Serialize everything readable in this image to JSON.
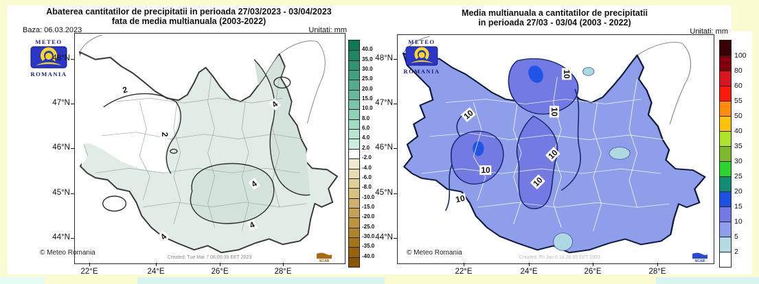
{
  "page": {
    "background_yellow": "#FBFBD2",
    "background_cyan": "#D9F4F2",
    "panel_white": "#FFFFFF"
  },
  "left_map": {
    "title_line1": "Abaterea cantitatilor de precipitatii in perioada 27/03/2023 - 03/04/2023",
    "title_line2": "fata de media multianuala (2003-2022)",
    "base_label": "Baza: 06.03.2023",
    "units_label": "Unitati: mm",
    "logo": {
      "line1": "METEO",
      "line2": "ROMANIA"
    },
    "copyright": "© Meteo Romania",
    "created": "Created: Tue Mar 7 06:00:39 EET 2023",
    "ncar_label": "NCAR",
    "ncar_color": "#A86A14",
    "lat_ticks": [
      "48°N",
      "47°N",
      "46°N",
      "45°N",
      "44°N"
    ],
    "lon_ticks": [
      "22°E",
      "24°E",
      "26°E",
      "28°E"
    ],
    "contour_labels": [
      "2",
      "2",
      "4",
      "4",
      "4",
      "4"
    ],
    "fill_light": "#E2ECE7",
    "fill_mid": "#D3E3DC",
    "fill_white": "#FFFFFF",
    "contour_color": "#2e2e2e",
    "colorbar": {
      "labels": [
        "40.0",
        "35.0",
        "30.0",
        "25.0",
        "20.0",
        "15.0",
        "10.0",
        "8.0",
        "6.0",
        "4.0",
        "2.0",
        "-2.0",
        "-4.0",
        "-6.0",
        "-8.0",
        "-10.0",
        "-15.0",
        "-20.0",
        "-25.0",
        "-30.0",
        "-35.0",
        "-40.0"
      ],
      "colors": [
        "#0B7A57",
        "#1C8764",
        "#2E9371",
        "#40A07F",
        "#53AC8D",
        "#66B99B",
        "#7AC5A9",
        "#8ED1B7",
        "#A3DCC5",
        "#B8E5D2",
        "#CCEEDF",
        "#FFFFFF",
        "#F0E9D0",
        "#E8DCB5",
        "#E0CF9B",
        "#D8C181",
        "#CFB269",
        "#C5A352",
        "#BB943C",
        "#B08527",
        "#A47514",
        "#976507",
        "#8A5500"
      ]
    }
  },
  "right_map": {
    "title_line1": "Media multianuala a cantitatilor de precipitatii",
    "title_line2": "in perioada 27/03 - 03/04 (2003 - 2022)",
    "units_label": "Unitati: mm",
    "logo": {
      "line1": "METEO",
      "line2": "ROMANIA"
    },
    "copyright": "© Meteo Romania",
    "created": "Created: Fri Jan 6 16:20:15 EET 2023",
    "ncar_label": "NCAR",
    "ncar_color": "#2B49D8",
    "lat_ticks": [
      "48°N",
      "47°N",
      "46°N",
      "45°N",
      "44°N"
    ],
    "lon_ticks": [
      "22°E",
      "24°E",
      "26°E",
      "28°E"
    ],
    "contour_labels": [
      "10",
      "10",
      "10",
      "10",
      "10",
      "10",
      "10"
    ],
    "fill_base": "#8F9EEA",
    "fill_dark": "#747AE4",
    "fill_blue_spot": "#1E55E6",
    "fill_cyan_spot": "#AFD9E2",
    "contour_color": "#1A2A6E",
    "colorbar": {
      "labels": [
        "100",
        "80",
        "60",
        "55",
        "50",
        "40",
        "35",
        "30",
        "25",
        "20",
        "15",
        "10",
        "5",
        "2"
      ],
      "colors": [
        "#3A0008",
        "#7E000C",
        "#DA1420",
        "#FB1A0A",
        "#FD8D0A",
        "#FDC10A",
        "#AEE32A",
        "#7FB82D",
        "#2FD32F",
        "#0E8C74",
        "#1C50E0",
        "#7478E2",
        "#8F9EEA",
        "#B5DAE4",
        "#FFFFFF"
      ]
    }
  }
}
